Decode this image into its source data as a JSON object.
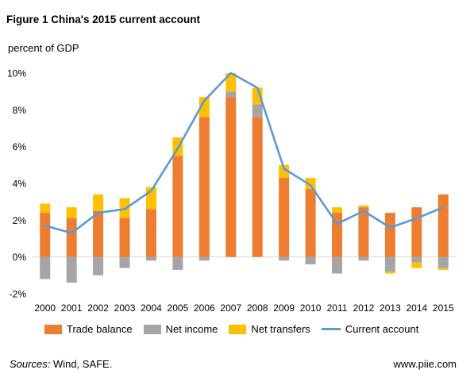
{
  "title": "Figure 1 China's 2015 current account",
  "subtitle": "percent of GDP",
  "sources_label": "Sources:",
  "sources_text": "Wind, SAFE.",
  "site": "www.piie.com",
  "colors": {
    "trade_balance": "#ED7D31",
    "net_income": "#A5A5A5",
    "net_transfers": "#FFC000",
    "current_account": "#5B9BD5",
    "zero_line": "#D9D9D9"
  },
  "chart_data": {
    "type": "bar",
    "stacked": true,
    "categories": [
      "2000",
      "2001",
      "2002",
      "2003",
      "2004",
      "2005",
      "2006",
      "2007",
      "2008",
      "2009",
      "2010",
      "2011",
      "2012",
      "2013",
      "2014",
      "2015"
    ],
    "series": [
      {
        "name": "Trade balance",
        "kind": "bar",
        "values": [
          2.4,
          2.1,
          2.5,
          2.1,
          2.6,
          5.5,
          7.6,
          8.7,
          7.6,
          4.3,
          3.7,
          2.4,
          2.7,
          2.4,
          2.7,
          3.4
        ]
      },
      {
        "name": "Net income",
        "kind": "bar",
        "values": [
          -1.2,
          -1.4,
          -1.0,
          -0.6,
          -0.2,
          -0.7,
          -0.2,
          0.3,
          0.7,
          -0.2,
          -0.4,
          -0.9,
          -0.2,
          -0.8,
          -0.3,
          -0.6
        ]
      },
      {
        "name": "Net transfers",
        "kind": "bar",
        "values": [
          0.5,
          0.6,
          0.9,
          1.1,
          1.2,
          1.0,
          1.1,
          1.0,
          0.9,
          0.7,
          0.6,
          0.3,
          0.1,
          -0.1,
          -0.3,
          -0.1
        ]
      },
      {
        "name": "Current account",
        "kind": "line",
        "values": [
          1.7,
          1.3,
          2.4,
          2.6,
          3.6,
          5.9,
          8.5,
          10.0,
          9.2,
          4.8,
          3.9,
          1.8,
          2.5,
          1.6,
          2.1,
          2.7
        ]
      }
    ],
    "y_ticks": [
      "-2%",
      "0%",
      "2%",
      "4%",
      "6%",
      "8%",
      "10%"
    ],
    "ylim": [
      -2,
      10
    ],
    "grid": false,
    "legend_position": "bottom"
  }
}
